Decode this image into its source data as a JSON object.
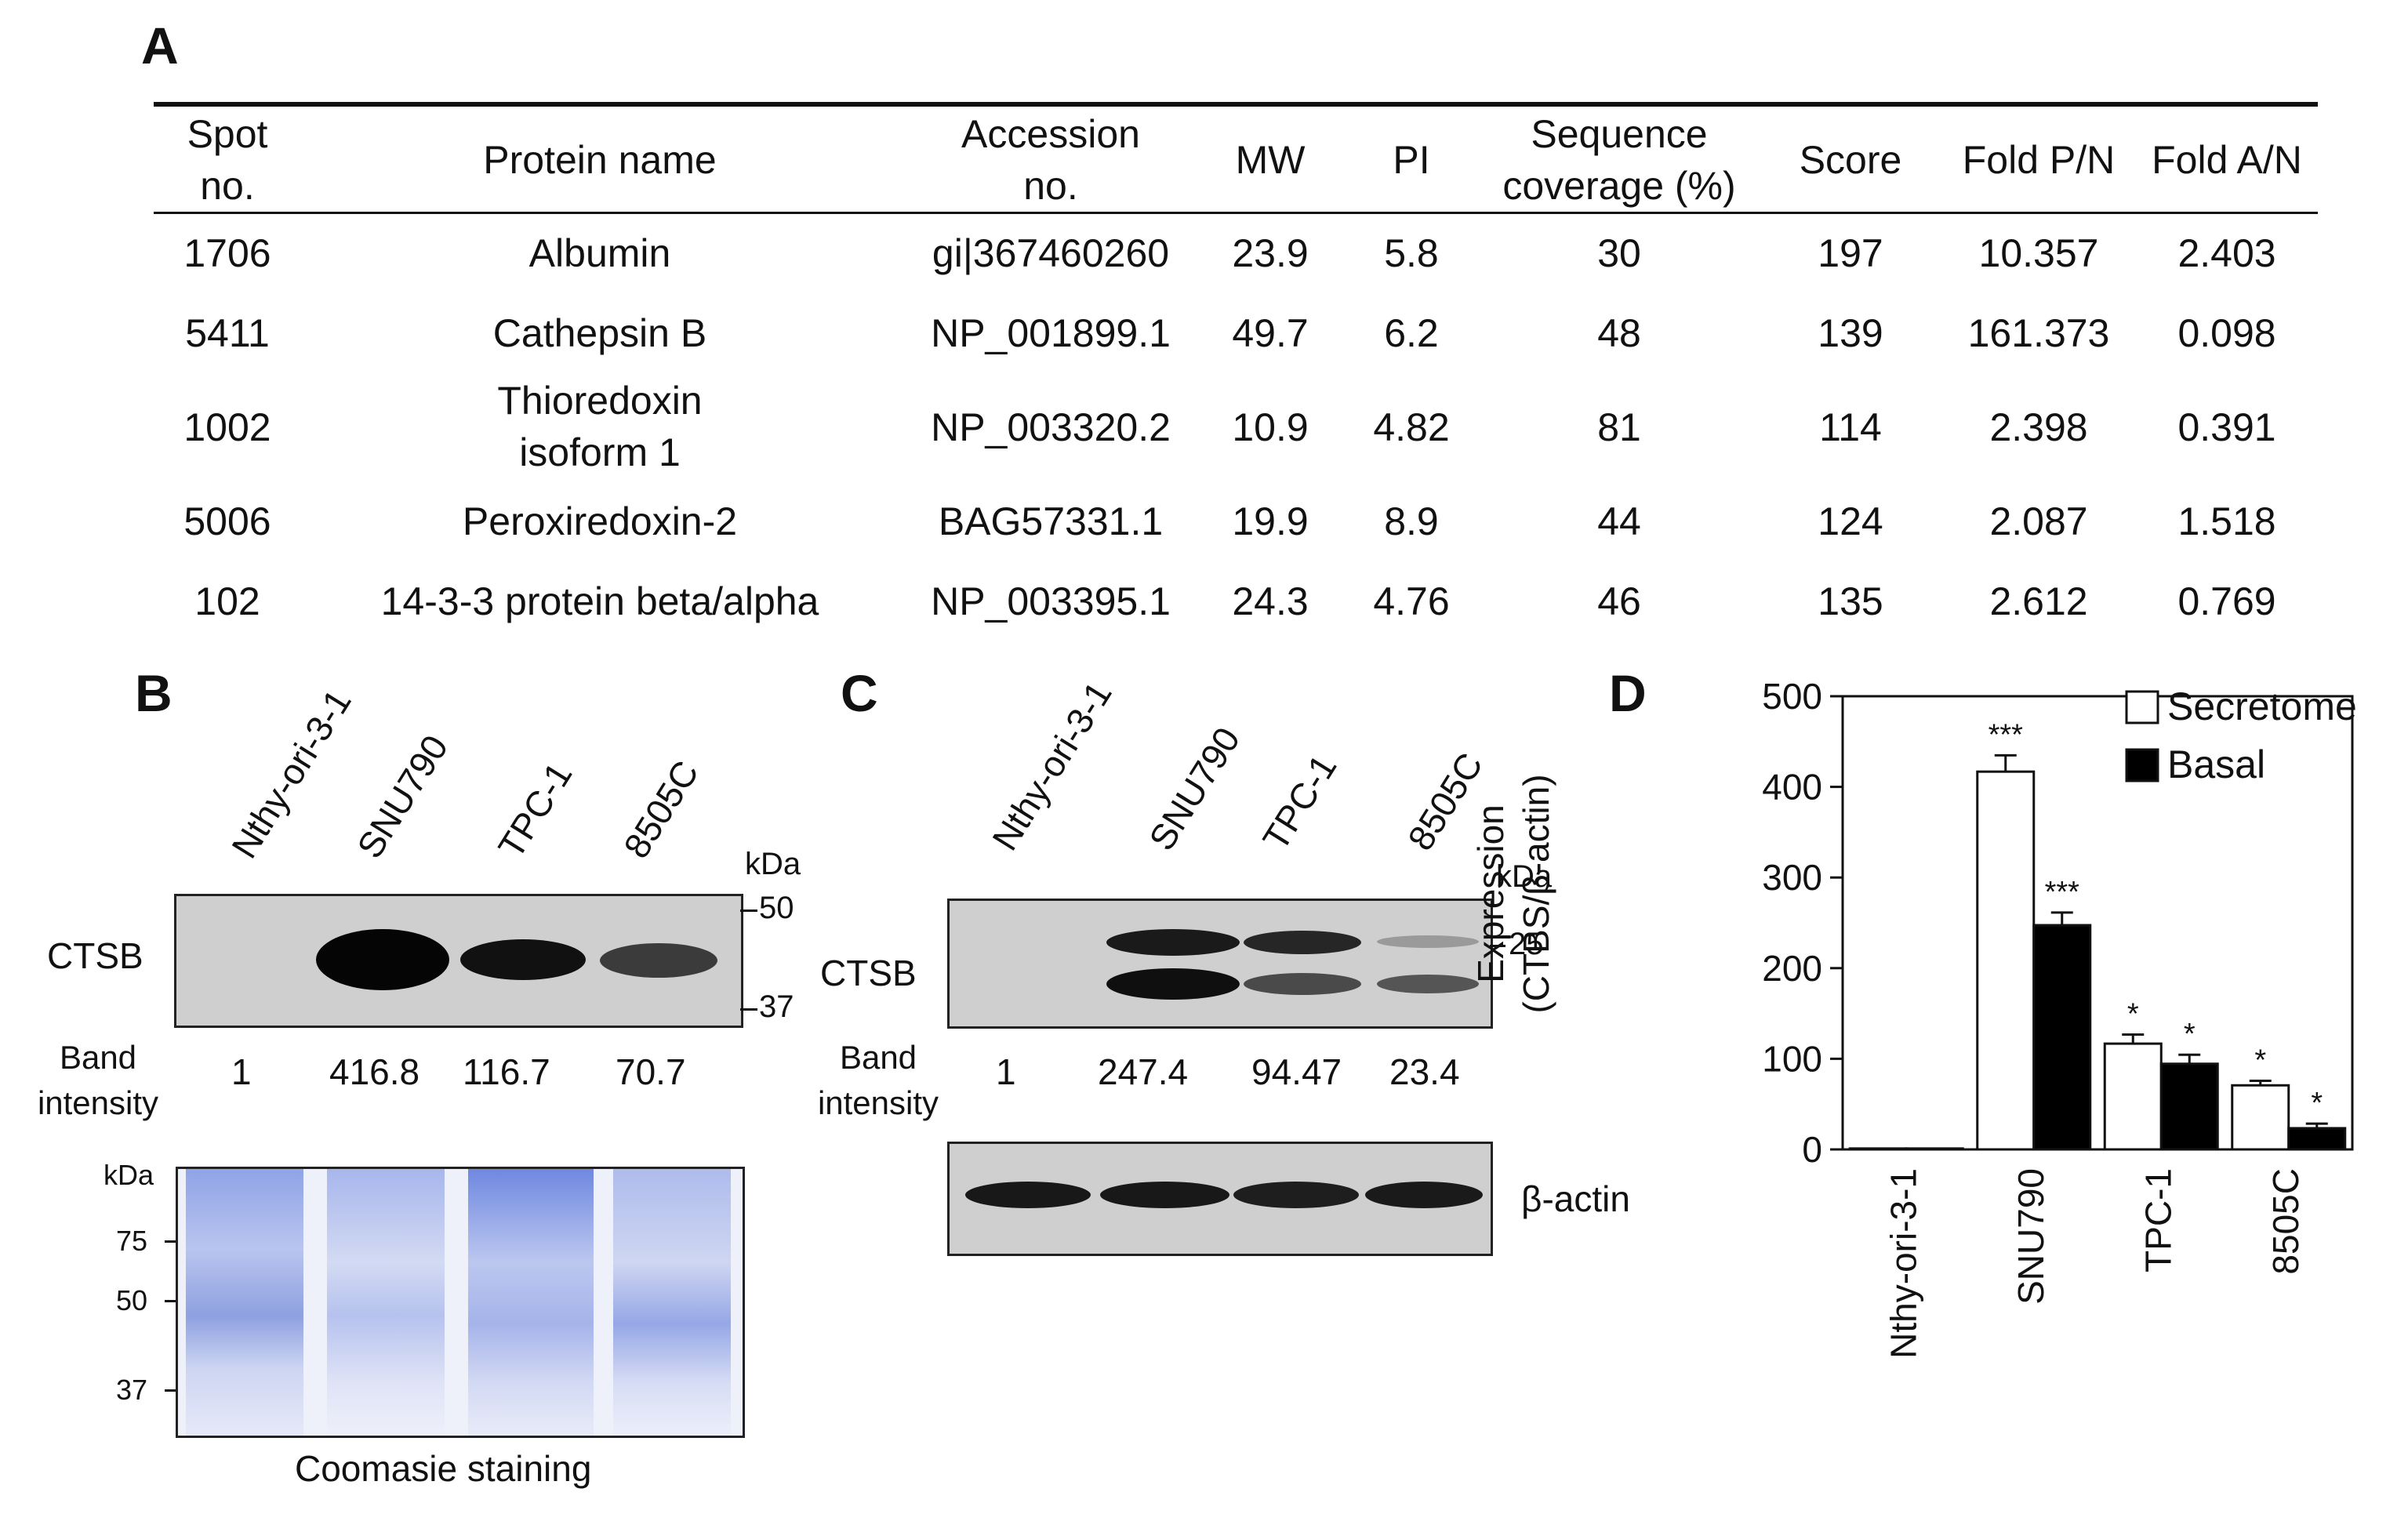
{
  "panel_a": {
    "letter": "A",
    "headers": {
      "spot": [
        "Spot",
        "no."
      ],
      "protein": "Protein name",
      "accession": [
        "Accession",
        "no."
      ],
      "mw": "MW",
      "pi": "PI",
      "coverage": [
        "Sequence",
        "coverage (%)"
      ],
      "score": "Score",
      "fold_pn": "Fold P/N",
      "fold_an": "Fold A/N"
    },
    "rows": [
      {
        "spot": "1706",
        "protein": [
          "Albumin"
        ],
        "accession": "gi|367460260",
        "mw": "23.9",
        "pi": "5.8",
        "coverage": "30",
        "score": "197",
        "fold_pn": "10.357",
        "fold_an": "2.403"
      },
      {
        "spot": "5411",
        "protein": [
          "Cathepsin B"
        ],
        "accession": "NP_001899.1",
        "mw": "49.7",
        "pi": "6.2",
        "coverage": "48",
        "score": "139",
        "fold_pn": "161.373",
        "fold_an": "0.098"
      },
      {
        "spot": "1002",
        "protein": [
          "Thioredoxin",
          "isoform 1"
        ],
        "accession": "NP_003320.2",
        "mw": "10.9",
        "pi": "4.82",
        "coverage": "81",
        "score": "114",
        "fold_pn": "2.398",
        "fold_an": "0.391"
      },
      {
        "spot": "5006",
        "protein": [
          "Peroxiredoxin-2"
        ],
        "accession": "BAG57331.1",
        "mw": "19.9",
        "pi": "8.9",
        "coverage": "44",
        "score": "124",
        "fold_pn": "2.087",
        "fold_an": "1.518"
      },
      {
        "spot": "102",
        "protein": [
          "14-3-3 protein beta/alpha"
        ],
        "accession": "NP_003395.1",
        "mw": "24.3",
        "pi": "4.76",
        "coverage": "46",
        "score": "135",
        "fold_pn": "2.612",
        "fold_an": "0.769"
      }
    ]
  },
  "panel_b": {
    "letter": "B",
    "lanes": [
      "Nthy-ori-3-1",
      "SNU790",
      "TPC-1",
      "8505C"
    ],
    "kda_label": "kDa",
    "markers": [
      "50",
      "37"
    ],
    "blot_label": "CTSB",
    "band_intensity_label": [
      "Band",
      "intensity"
    ],
    "band_intensity": [
      "1",
      "416.8",
      "116.7",
      "70.7"
    ],
    "coomassie_kda": "kDa",
    "coomassie_markers": [
      "75",
      "50",
      "37"
    ],
    "coomassie_caption": "Coomasie staining"
  },
  "panel_c": {
    "letter": "C",
    "lanes": [
      "Nthy-ori-3-1",
      "SNU790",
      "TPC-1",
      "8505C"
    ],
    "kda_label": "kDa",
    "markers": [
      "25"
    ],
    "blot_label": "CTSB",
    "band_intensity_label": [
      "Band",
      "intensity"
    ],
    "band_intensity": [
      "1",
      "247.4",
      "94.47",
      "23.4"
    ],
    "loading_label": "β-actin"
  },
  "chart_data": {
    "type": "bar",
    "panel_letter": "D",
    "categories": [
      "Nthy-ori-3-1",
      "SNU790",
      "TPC-1",
      "8505C"
    ],
    "series": [
      {
        "name": "Secretome",
        "values": [
          1,
          416.8,
          116.7,
          70.7
        ],
        "errors": [
          0,
          18,
          10,
          5
        ],
        "significance": [
          "",
          "***",
          "*",
          "*"
        ],
        "color": "#ffffff"
      },
      {
        "name": "Basal",
        "values": [
          1,
          247.4,
          94.47,
          23.4
        ],
        "errors": [
          0,
          14,
          10,
          5
        ],
        "significance": [
          "",
          "***",
          "*",
          "*"
        ],
        "color": "#000000"
      }
    ],
    "ylabel": [
      "Expression",
      "(CTBS/β-actin)"
    ],
    "ylim": [
      0,
      500
    ],
    "yticks": [
      "0",
      "100",
      "200",
      "300",
      "400",
      "500"
    ],
    "legend_position": "top-right",
    "grid": false
  }
}
